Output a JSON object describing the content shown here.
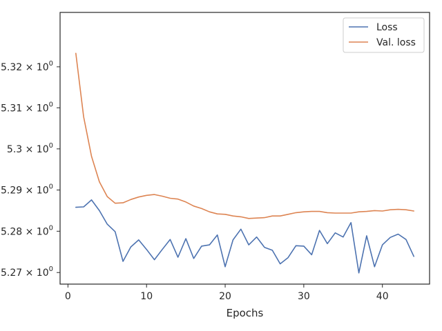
{
  "chart_data": {
    "type": "line",
    "title": "",
    "xlabel": "Epochs",
    "ylabel": "",
    "yscale": "log",
    "xlim": [
      -1,
      46
    ],
    "ylim": [
      5.2672,
      5.3333
    ],
    "xticks": [
      0,
      10,
      20,
      30,
      40
    ],
    "xtick_labels": [
      "0",
      "10",
      "20",
      "30",
      "40"
    ],
    "yticks": [
      5.27,
      5.28,
      5.29,
      5.3,
      5.31,
      5.32
    ],
    "ytick_labels": [
      {
        "mantissa": "5.27",
        "times": "×",
        "base": "10",
        "exp": "0"
      },
      {
        "mantissa": "5.28",
        "times": "×",
        "base": "10",
        "exp": "0"
      },
      {
        "mantissa": "5.29",
        "times": "×",
        "base": "10",
        "exp": "0"
      },
      {
        "mantissa": "5.3",
        "times": "×",
        "base": "10",
        "exp": "0"
      },
      {
        "mantissa": "5.31",
        "times": "×",
        "base": "10",
        "exp": "0"
      },
      {
        "mantissa": "5.32",
        "times": "×",
        "base": "10",
        "exp": "0"
      }
    ],
    "grid": false,
    "legend_position": "top-right",
    "x": [
      1,
      2,
      3,
      4,
      5,
      6,
      7,
      8,
      9,
      10,
      11,
      12,
      13,
      14,
      15,
      16,
      17,
      18,
      19,
      20,
      21,
      22,
      23,
      24,
      25,
      26,
      27,
      28,
      29,
      30,
      31,
      32,
      33,
      34,
      35,
      36,
      37,
      38,
      39,
      40,
      41,
      42,
      43,
      44
    ],
    "series": [
      {
        "name": "Loss",
        "color": "#4c72b0",
        "values": [
          5.2858,
          5.2859,
          5.2876,
          5.285,
          5.2817,
          5.2799,
          5.2727,
          5.2762,
          5.2779,
          5.2756,
          5.2731,
          5.2756,
          5.278,
          5.2737,
          5.2782,
          5.2734,
          5.2764,
          5.2767,
          5.2791,
          5.2714,
          5.2779,
          5.2805,
          5.2767,
          5.2786,
          5.2761,
          5.2754,
          5.2721,
          5.2736,
          5.2765,
          5.2764,
          5.2743,
          5.2802,
          5.277,
          5.2796,
          5.2786,
          5.2821,
          5.2699,
          5.2789,
          5.2714,
          5.2767,
          5.2785,
          5.2793,
          5.278,
          5.2739
        ]
      },
      {
        "name": "Val. loss",
        "color": "#dd8452",
        "values": [
          5.3233,
          5.3078,
          5.2982,
          5.292,
          5.2884,
          5.2868,
          5.2869,
          5.2877,
          5.2883,
          5.2887,
          5.2889,
          5.2885,
          5.288,
          5.2878,
          5.2871,
          5.2861,
          5.2855,
          5.2847,
          5.2842,
          5.2841,
          5.2837,
          5.2835,
          5.2831,
          5.2832,
          5.2833,
          5.2837,
          5.2837,
          5.2841,
          5.2845,
          5.2847,
          5.2848,
          5.2848,
          5.2845,
          5.2844,
          5.2844,
          5.2844,
          5.2847,
          5.2848,
          5.285,
          5.2849,
          5.2852,
          5.2853,
          5.2852,
          5.2849
        ]
      }
    ]
  }
}
